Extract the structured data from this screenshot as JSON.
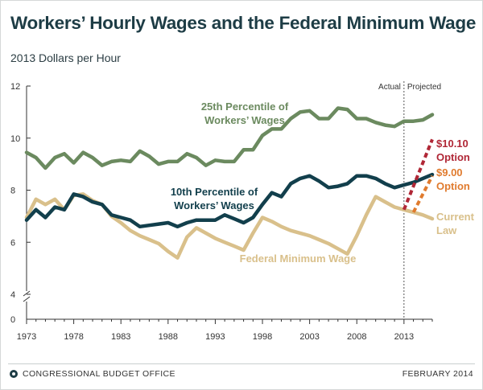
{
  "header": {
    "title": "Workers’ Hourly Wages and the Federal Minimum Wage",
    "subtitle": "2013 Dollars per Hour"
  },
  "footer": {
    "source": "CONGRESSIONAL BUDGET OFFICE",
    "date": "FEBRUARY 2014"
  },
  "chart_data": {
    "type": "line",
    "title": "Workers’ Hourly Wages and the Federal Minimum Wage",
    "ylabel": "2013 Dollars per Hour",
    "xlim": [
      1973,
      2016
    ],
    "ylim": [
      0,
      12
    ],
    "y_axis_break": [
      0,
      4
    ],
    "x_ticks": [
      "1973",
      "1978",
      "1983",
      "1988",
      "1993",
      "1998",
      "2003",
      "2008",
      "2013"
    ],
    "y_ticks": [
      "0",
      "4",
      "6",
      "8",
      "10",
      "12"
    ],
    "divider": {
      "year": 2013,
      "left_label": "Actual",
      "right_label": "Projected"
    },
    "colors": {
      "p25": "#6b8a5f",
      "p10": "#123f4c",
      "minimum_wage": "#d9c08b",
      "option_1010": "#b02736",
      "option_900": "#e07b2e",
      "axis": "#333333",
      "divider": "#555555"
    },
    "series": [
      {
        "key": "p25",
        "name": "25th Percentile of Workers’ Wages",
        "x": [
          1973,
          1974,
          1975,
          1976,
          1977,
          1978,
          1979,
          1980,
          1981,
          1982,
          1983,
          1984,
          1985,
          1986,
          1987,
          1988,
          1989,
          1990,
          1991,
          1992,
          1993,
          1994,
          1995,
          1996,
          1997,
          1998,
          1999,
          2000,
          2001,
          2002,
          2003,
          2004,
          2005,
          2006,
          2007,
          2008,
          2009,
          2010,
          2011,
          2012,
          2013,
          2014,
          2015,
          2016
        ],
        "values": [
          9.45,
          9.25,
          8.85,
          9.25,
          9.4,
          9.05,
          9.45,
          9.25,
          8.95,
          9.1,
          9.15,
          9.1,
          9.5,
          9.3,
          9.0,
          9.1,
          9.1,
          9.4,
          9.25,
          8.95,
          9.15,
          9.1,
          9.1,
          9.55,
          9.55,
          10.1,
          10.35,
          10.35,
          10.75,
          11.0,
          11.05,
          10.75,
          10.75,
          11.15,
          11.1,
          10.75,
          10.75,
          10.6,
          10.5,
          10.45,
          10.65,
          10.65,
          10.7,
          10.9
        ]
      },
      {
        "key": "p10",
        "name": "10th Percentile of Workers’ Wages",
        "x": [
          1973,
          1974,
          1975,
          1976,
          1977,
          1978,
          1979,
          1980,
          1981,
          1982,
          1983,
          1984,
          1985,
          1986,
          1987,
          1988,
          1989,
          1990,
          1991,
          1992,
          1993,
          1994,
          1995,
          1996,
          1997,
          1998,
          1999,
          2000,
          2001,
          2002,
          2003,
          2004,
          2005,
          2006,
          2007,
          2008,
          2009,
          2010,
          2011,
          2012,
          2013,
          2014,
          2015,
          2016
        ],
        "values": [
          6.85,
          7.25,
          6.95,
          7.35,
          7.25,
          7.85,
          7.75,
          7.55,
          7.45,
          7.05,
          6.95,
          6.85,
          6.6,
          6.65,
          6.7,
          6.75,
          6.6,
          6.75,
          6.85,
          6.85,
          6.85,
          7.05,
          6.9,
          6.75,
          6.95,
          7.45,
          7.9,
          7.75,
          8.25,
          8.45,
          8.55,
          8.35,
          8.1,
          8.15,
          8.25,
          8.55,
          8.55,
          8.45,
          8.25,
          8.1,
          8.2,
          8.3,
          8.45,
          8.6
        ]
      },
      {
        "key": "minimum_wage",
        "name": "Federal Minimum Wage",
        "x": [
          1973,
          1974,
          1975,
          1976,
          1977,
          1978,
          1979,
          1980,
          1981,
          1982,
          1983,
          1984,
          1985,
          1986,
          1987,
          1988,
          1989,
          1990,
          1991,
          1992,
          1993,
          1994,
          1995,
          1996,
          1997,
          1998,
          1999,
          2000,
          2001,
          2002,
          2003,
          2004,
          2005,
          2006,
          2007,
          2008,
          2009,
          2010,
          2011,
          2012,
          2013,
          2014,
          2015,
          2016
        ],
        "values": [
          6.95,
          7.65,
          7.45,
          7.65,
          7.25,
          7.8,
          7.85,
          7.6,
          7.45,
          7.0,
          6.75,
          6.45,
          6.25,
          6.1,
          5.95,
          5.65,
          5.4,
          6.2,
          6.55,
          6.35,
          6.15,
          6.0,
          5.85,
          5.7,
          6.35,
          6.95,
          6.8,
          6.6,
          6.45,
          6.35,
          6.25,
          6.1,
          5.95,
          5.75,
          5.55,
          6.25,
          7.05,
          7.75,
          7.55,
          7.35,
          7.25,
          7.15,
          7.05,
          6.9
        ]
      },
      {
        "key": "option_1010",
        "name": "$10.10 Option",
        "dashed": true,
        "x": [
          2013,
          2016
        ],
        "values": [
          7.25,
          9.95
        ]
      },
      {
        "key": "option_900",
        "name": "$9.00 Option",
        "dashed": true,
        "x": [
          2014,
          2016
        ],
        "values": [
          7.15,
          8.55
        ]
      }
    ],
    "annotations": {
      "p25_line1": "25th Percentile of",
      "p25_line2": "Workers’ Wages",
      "p10_line1": "10th Percentile of",
      "p10_line2": "Workers’ Wages",
      "minwage": "Federal Minimum Wage",
      "current_line1": "Current",
      "current_line2": "Law",
      "opt1010_line1": "$10.10",
      "opt1010_line2": "Option",
      "opt900_line1": "$9.00",
      "opt900_line2": "Option"
    }
  }
}
